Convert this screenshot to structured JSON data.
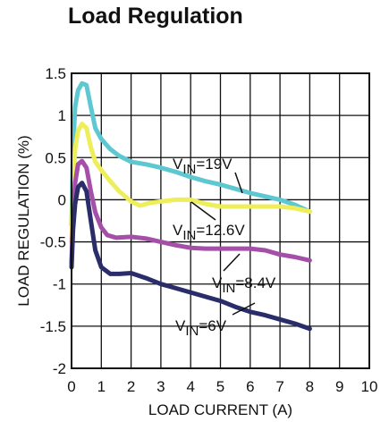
{
  "chart_data": {
    "type": "line",
    "title": "Load Regulation",
    "xlabel": "LOAD CURRENT (A)",
    "ylabel": "LOAD REGULATION (%)",
    "xlim": [
      0,
      10
    ],
    "ylim": [
      -2,
      1.5
    ],
    "x_ticks": [
      "0",
      "1",
      "2",
      "3",
      "4",
      "5",
      "6",
      "7",
      "8",
      "9",
      "10"
    ],
    "y_ticks": [
      "1.5",
      "1",
      "0.5",
      "0",
      "-0.5",
      "-1",
      "-1.5",
      "-2"
    ],
    "grid": true,
    "series": [
      {
        "label_prefix": "V",
        "label_sub": "IN",
        "label_suffix": "=19V",
        "color": "#5ec8d0",
        "x": [
          0.0,
          0.05,
          0.12,
          0.22,
          0.35,
          0.5,
          0.65,
          0.8,
          1.0,
          1.3,
          1.6,
          2.0,
          2.5,
          3.0,
          3.5,
          4.0,
          4.5,
          5.0,
          5.5,
          6.0,
          6.5,
          7.0,
          7.5,
          8.0
        ],
        "y": [
          -0.3,
          0.6,
          1.1,
          1.3,
          1.38,
          1.36,
          1.1,
          0.85,
          0.72,
          0.6,
          0.52,
          0.45,
          0.42,
          0.38,
          0.33,
          0.27,
          0.22,
          0.18,
          0.13,
          0.08,
          0.04,
          0.0,
          -0.06,
          -0.14
        ]
      },
      {
        "label_prefix": "V",
        "label_sub": "IN",
        "label_suffix": "=12.6V",
        "color": "#eeee5a",
        "x": [
          0.0,
          0.05,
          0.12,
          0.22,
          0.35,
          0.5,
          0.65,
          0.8,
          1.0,
          1.3,
          1.6,
          2.0,
          2.3,
          2.6,
          3.0,
          3.5,
          4.0,
          4.5,
          5.0,
          5.5,
          6.0,
          6.5,
          7.0,
          7.5,
          8.0
        ],
        "y": [
          -0.5,
          0.2,
          0.6,
          0.82,
          0.9,
          0.85,
          0.62,
          0.45,
          0.35,
          0.22,
          0.1,
          -0.02,
          -0.07,
          -0.04,
          -0.02,
          0.0,
          0.0,
          -0.05,
          -0.08,
          -0.08,
          -0.08,
          -0.08,
          -0.08,
          -0.1,
          -0.14
        ]
      },
      {
        "label_prefix": "V",
        "label_sub": "IN",
        "label_suffix": "=8.4V",
        "color": "#a550a8",
        "x": [
          0.0,
          0.05,
          0.12,
          0.22,
          0.35,
          0.5,
          0.65,
          0.8,
          1.0,
          1.2,
          1.5,
          2.0,
          2.5,
          3.0,
          3.5,
          4.0,
          4.5,
          5.0,
          5.5,
          6.0,
          6.5,
          7.0,
          7.5,
          8.0
        ],
        "y": [
          -0.75,
          -0.2,
          0.2,
          0.42,
          0.46,
          0.38,
          0.1,
          -0.15,
          -0.33,
          -0.42,
          -0.45,
          -0.44,
          -0.46,
          -0.5,
          -0.54,
          -0.57,
          -0.58,
          -0.58,
          -0.58,
          -0.58,
          -0.6,
          -0.65,
          -0.68,
          -0.72
        ]
      },
      {
        "label_prefix": "V",
        "label_sub": "IN",
        "label_suffix": "=6V",
        "color": "#2a2d6a",
        "x": [
          0.0,
          0.05,
          0.12,
          0.22,
          0.35,
          0.5,
          0.65,
          0.8,
          1.0,
          1.3,
          1.6,
          2.0,
          2.5,
          3.0,
          3.5,
          4.0,
          4.5,
          5.0,
          5.5,
          6.0,
          6.5,
          7.0,
          7.5,
          8.0
        ],
        "y": [
          -0.8,
          -0.35,
          -0.05,
          0.15,
          0.2,
          0.1,
          -0.25,
          -0.6,
          -0.8,
          -0.88,
          -0.88,
          -0.87,
          -0.93,
          -1.0,
          -1.05,
          -1.1,
          -1.15,
          -1.2,
          -1.27,
          -1.33,
          -1.37,
          -1.42,
          -1.47,
          -1.53
        ]
      }
    ]
  }
}
